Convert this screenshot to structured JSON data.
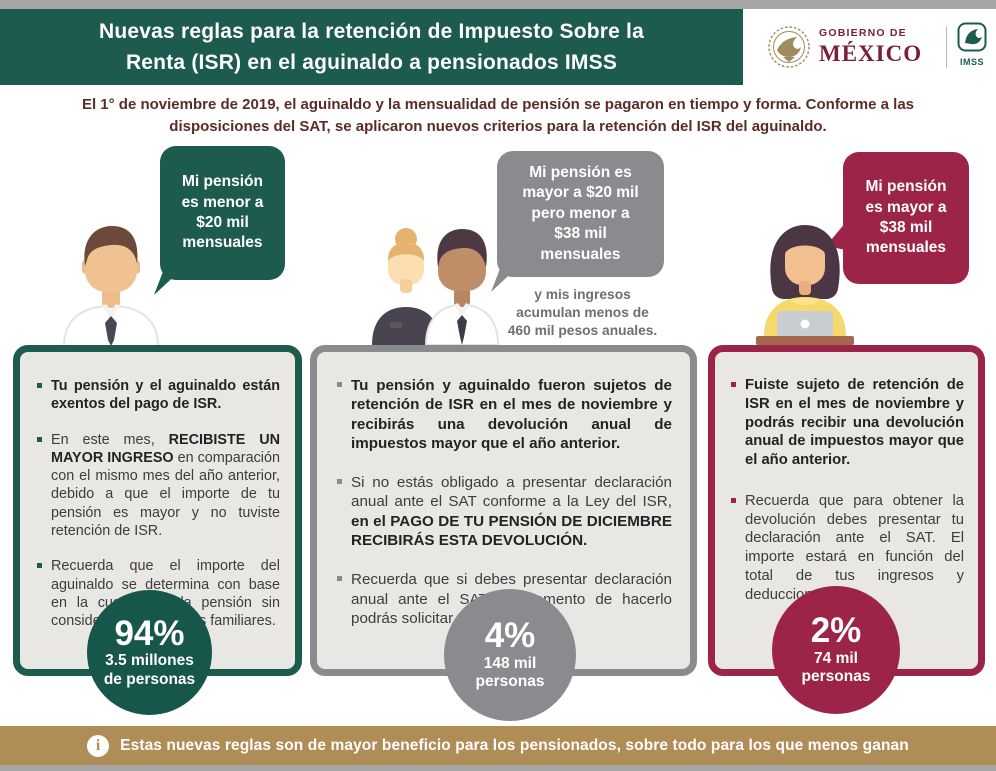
{
  "header": {
    "title_line1": "Nuevas reglas para la retención de Impuesto Sobre la",
    "title_line2": "Renta (ISR) en el aguinaldo a pensionados IMSS",
    "logo": {
      "gobierno_top": "GOBIERNO DE",
      "gobierno_bottom": "MÉXICO",
      "imss_label": "IMSS"
    }
  },
  "intro": {
    "line1": "El 1° de noviembre de 2019, el aguinaldo y la mensualidad de pensión se pagaron en tiempo y forma.  Conforme a las",
    "line2": "disposiciones del SAT, se aplicaron nuevos criterios para la retención del ISR del aguinaldo."
  },
  "colors": {
    "green": "#1d5b4e",
    "circle_green": "#17564a",
    "gray": "#8a8b8e",
    "maroon": "#9d2449",
    "gold": "#b08d57",
    "intro_text": "#5a2d28",
    "box_fill": "#e8e7e4"
  },
  "columns": [
    {
      "bubble_lines": [
        "Mi pensión",
        "es menor a",
        "$20 mil",
        "mensuales"
      ],
      "bullets": [
        {
          "segments": [
            {
              "text": "Tu pensión y el aguinaldo están exentos del pago de ISR.",
              "bold": true
            }
          ]
        },
        {
          "segments": [
            {
              "text": "En este mes, ",
              "bold": false
            },
            {
              "text": "RECIBISTE UN MAYOR INGRESO",
              "bold": true
            },
            {
              "text": " en comparación con el mismo mes del año anterior, debido a que el importe de tu pensión es mayor y no tuviste retención de ISR.",
              "bold": false
            }
          ]
        },
        {
          "segments": [
            {
              "text": "Recuerda que el importe del aguinaldo se determina con base en la cuantía de la pensión sin considerar asignaciones familiares.",
              "bold": false
            }
          ]
        }
      ],
      "stat_pct": "94%",
      "stat_cap1": "3.5 millones",
      "stat_cap2": "de personas"
    },
    {
      "bubble_lines": [
        "Mi pensión es",
        "mayor a $20 mil",
        "pero menor a",
        "$38 mil",
        "mensuales"
      ],
      "note_lines": [
        "y mis ingresos",
        "acumulan menos de",
        "460 mil pesos anuales."
      ],
      "bullets": [
        {
          "segments": [
            {
              "text": "Tu pensión y aguinaldo fueron sujetos de retención de ISR en el mes de noviembre y recibirás una devolución anual de impuestos mayor que el año anterior.",
              "bold": true
            }
          ]
        },
        {
          "segments": [
            {
              "text": "Si no estás obligado a presentar declaración anual ante el SAT conforme a la Ley del ISR, ",
              "bold": false
            },
            {
              "text": "en el PAGO DE TU PENSIÓN DE DICIEMBRE RECIBIRÁS ESTA DEVOLUCIÓN.",
              "bold": true
            }
          ]
        },
        {
          "segments": [
            {
              "text": "Recuerda que si debes presentar declaración anual ante el SAT, al momento de hacerlo podrás solicitar esta devolución.",
              "bold": false
            }
          ]
        }
      ],
      "stat_pct": "4%",
      "stat_cap1": "148 mil",
      "stat_cap2": "personas"
    },
    {
      "bubble_lines": [
        "Mi pensión",
        "es mayor a",
        "$38 mil",
        "mensuales"
      ],
      "bullets": [
        {
          "segments": [
            {
              "text": "Fuiste sujeto de retención de ISR en el mes de noviembre y podrás recibir una devolución anual de impuestos mayor que el año anterior.",
              "bold": true
            }
          ]
        },
        {
          "segments": [
            {
              "text": "Recuerda que para obtener la devolución debes presentar tu declaración ante el SAT. El importe estará en función del total de tus ingresos y deducciones.",
              "bold": false
            }
          ]
        }
      ],
      "stat_pct": "2%",
      "stat_cap1": "74 mil",
      "stat_cap2": "personas"
    }
  ],
  "footer": {
    "icon_glyph": "i",
    "text": "Estas nuevas reglas son de mayor beneficio para los pensionados, sobre todo para los que menos ganan"
  }
}
